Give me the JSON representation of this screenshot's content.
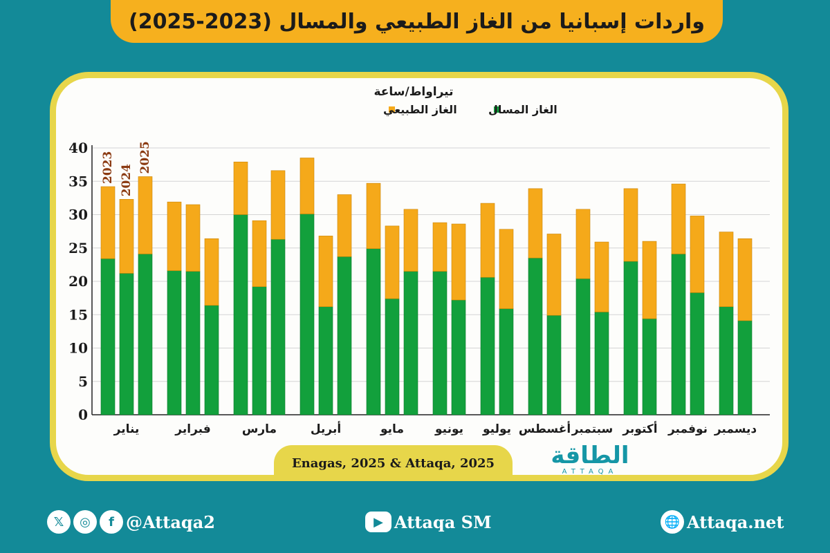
{
  "title": "واردات إسبانيا من الغاز الطبيعي والمسال (2023-2025)",
  "source": "Enagas, 2025 & Attaqa, 2025",
  "logo": {
    "main": "الطاقة",
    "sub": "ATTAQA"
  },
  "footer": {
    "social_handle": "@Attaqa2",
    "youtube": "Attaqa SM",
    "website": "Attaqa.net"
  },
  "colors": {
    "lng": "#12a03c",
    "natural_gas": "#f5a91a",
    "year_label": "#8b3a12"
  },
  "chart_data": {
    "type": "stacked-bar",
    "unit_label": "تيراواط/ساعة",
    "legend": [
      {
        "name": "الغاز المسال",
        "key": "lng"
      },
      {
        "name": "الغاز الطبيعي",
        "key": "natural_gas"
      }
    ],
    "ylim": [
      0,
      40
    ],
    "yticks": [
      0,
      5,
      10,
      15,
      20,
      25,
      30,
      35,
      40
    ],
    "year_labels": [
      "2023",
      "2024",
      "2025"
    ],
    "months": [
      {
        "name": "يناير",
        "bars": [
          {
            "year": "2023",
            "lng": 23.4,
            "gas": 10.8
          },
          {
            "year": "2024",
            "lng": 21.2,
            "gas": 11.1
          },
          {
            "year": "2025",
            "lng": 24.1,
            "gas": 11.6
          }
        ]
      },
      {
        "name": "فبراير",
        "bars": [
          {
            "year": "2023",
            "lng": 21.6,
            "gas": 10.3
          },
          {
            "year": "2024",
            "lng": 21.5,
            "gas": 10.0
          },
          {
            "year": "2025",
            "lng": 16.4,
            "gas": 10.0
          }
        ]
      },
      {
        "name": "مارس",
        "bars": [
          {
            "year": "2023",
            "lng": 30.0,
            "gas": 7.9
          },
          {
            "year": "2024",
            "lng": 19.2,
            "gas": 9.9
          },
          {
            "year": "2025",
            "lng": 26.3,
            "gas": 10.3
          }
        ]
      },
      {
        "name": "أبريل",
        "bars": [
          {
            "year": "2023",
            "lng": 30.1,
            "gas": 8.4
          },
          {
            "year": "2024",
            "lng": 16.2,
            "gas": 10.6
          },
          {
            "year": "2025",
            "lng": 23.7,
            "gas": 9.3
          }
        ]
      },
      {
        "name": "مايو",
        "bars": [
          {
            "year": "2023",
            "lng": 24.9,
            "gas": 9.8
          },
          {
            "year": "2024",
            "lng": 17.4,
            "gas": 10.9
          },
          {
            "year": "2025",
            "lng": 21.5,
            "gas": 9.3
          }
        ]
      },
      {
        "name": "يونيو",
        "bars": [
          {
            "year": "2023",
            "lng": 21.5,
            "gas": 7.3
          },
          {
            "year": "2024",
            "lng": 17.2,
            "gas": 11.4
          }
        ]
      },
      {
        "name": "يوليو",
        "bars": [
          {
            "year": "2023",
            "lng": 20.6,
            "gas": 11.1
          },
          {
            "year": "2024",
            "lng": 15.9,
            "gas": 11.9
          }
        ]
      },
      {
        "name": "أغسطس",
        "bars": [
          {
            "year": "2023",
            "lng": 23.5,
            "gas": 10.4
          },
          {
            "year": "2024",
            "lng": 14.9,
            "gas": 12.2
          }
        ]
      },
      {
        "name": "سبتمبر",
        "bars": [
          {
            "year": "2023",
            "lng": 20.4,
            "gas": 10.4
          },
          {
            "year": "2024",
            "lng": 15.4,
            "gas": 10.5
          }
        ]
      },
      {
        "name": "أكتوبر",
        "bars": [
          {
            "year": "2023",
            "lng": 23.0,
            "gas": 10.9
          },
          {
            "year": "2024",
            "lng": 14.4,
            "gas": 11.6
          }
        ]
      },
      {
        "name": "نوفمبر",
        "bars": [
          {
            "year": "2023",
            "lng": 24.1,
            "gas": 10.5
          },
          {
            "year": "2024",
            "lng": 18.3,
            "gas": 11.5
          }
        ]
      },
      {
        "name": "ديسمبر",
        "bars": [
          {
            "year": "2023",
            "lng": 16.2,
            "gas": 11.2
          },
          {
            "year": "2024",
            "lng": 14.1,
            "gas": 12.3
          }
        ]
      }
    ]
  }
}
